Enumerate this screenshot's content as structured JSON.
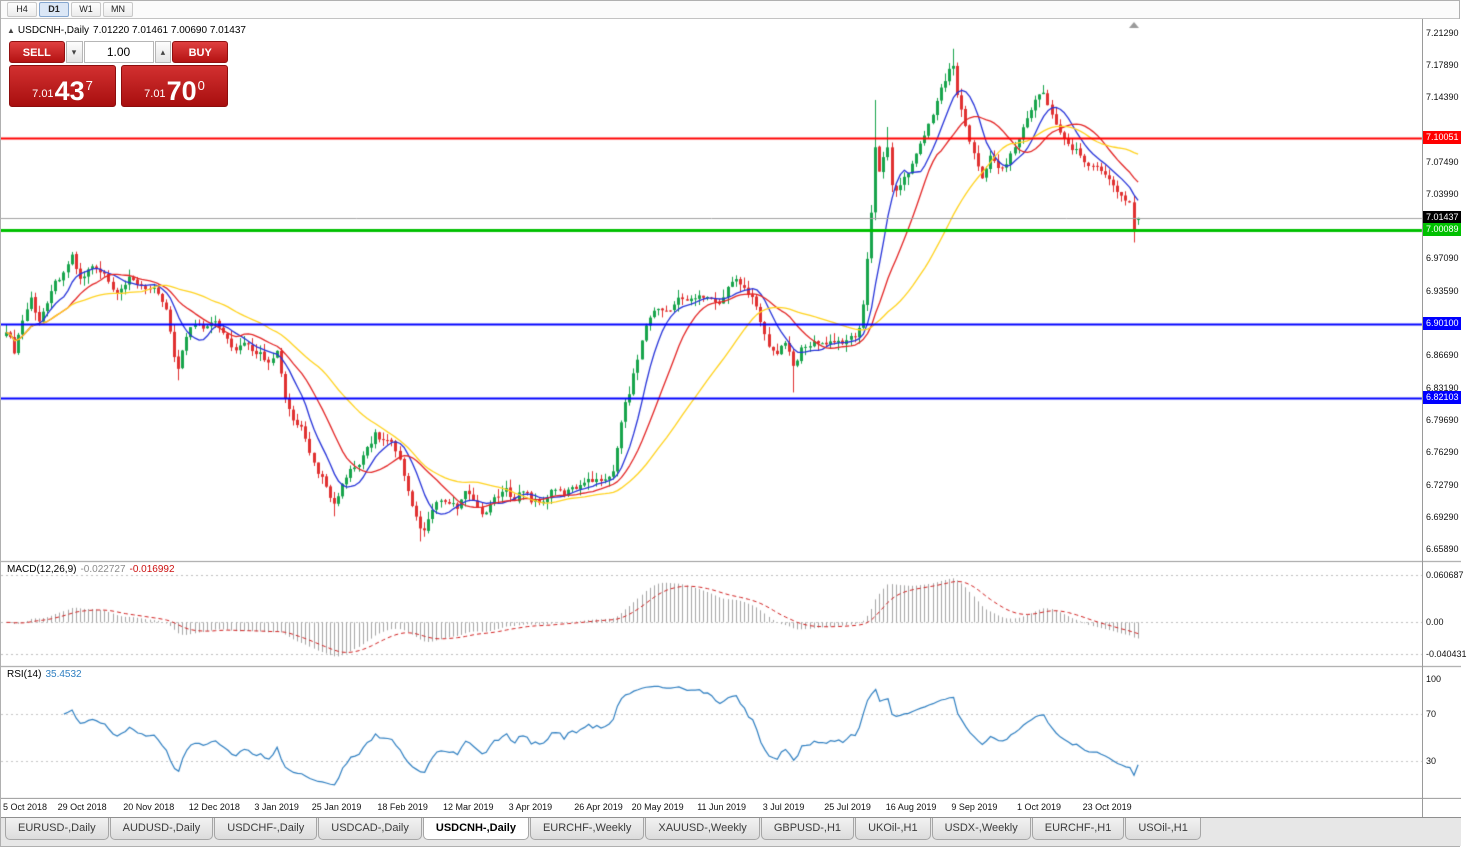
{
  "icons": {
    "collapse_arrow": "▲",
    "spinner_up": "▴",
    "spinner_down": "▾"
  },
  "toolbar": {
    "timeframes": [
      "H4",
      "D1",
      "W1",
      "MN"
    ],
    "active": "D1"
  },
  "chart_header": {
    "symbol": "USDCNH-,Daily",
    "ohlc": "7.01220 7.01461 7.00690 7.01437"
  },
  "trade_widget": {
    "sell_label": "SELL",
    "buy_label": "BUY",
    "volume": "1.00",
    "sell_small": "7.01",
    "sell_big": "43",
    "sell_sup": "7",
    "buy_small": "7.01",
    "buy_big": "70",
    "buy_sup": "0"
  },
  "price_scale": {
    "plain": [
      "7.21290",
      "7.17890",
      "7.14390",
      "7.07490",
      "7.03990",
      "6.97090",
      "6.93590",
      "6.86690",
      "6.83190",
      "6.79690",
      "6.76290",
      "6.72790",
      "6.69290",
      "6.65890"
    ],
    "boxes": [
      {
        "text": "7.10051",
        "bg": "#ff0000"
      },
      {
        "text": "7.01437",
        "bg": "#000000"
      },
      {
        "text": "7.00089",
        "bg": "#00c000"
      },
      {
        "text": "6.90100",
        "bg": "#0000ff"
      },
      {
        "text": "6.82103",
        "bg": "#0000ff"
      }
    ]
  },
  "macd": {
    "name": "MACD(12,26,9)",
    "v1": "-0.022727",
    "v2": "-0.016992",
    "scale": [
      {
        "text": "0.060687",
        "value": 0.060687
      },
      {
        "text": "0.00",
        "value": 0
      },
      {
        "text": "-0.040431",
        "value": -0.040431
      }
    ]
  },
  "rsi": {
    "name": "RSI(14)",
    "value": "35.4532",
    "scale": [
      {
        "text": "100",
        "value": 100
      },
      {
        "text": "70",
        "value": 70
      },
      {
        "text": "30",
        "value": 30
      }
    ]
  },
  "tabs": {
    "labels": [
      "EURUSD-,Daily",
      "AUDUSD-,Daily",
      "USDCHF-,Daily",
      "USDCAD-,Daily",
      "USDCNH-,Daily",
      "EURCHF-,Weekly",
      "XAUUSD-,Weekly",
      "GBPUSD-,H1",
      "UKOil-,H1",
      "USDX-,Weekly",
      "EURCHF-,H1",
      "USOil-,H1"
    ],
    "active": "USDCNH-,Daily"
  },
  "chart_data": {
    "type": "candlestick",
    "symbol": "USDCNH-",
    "timeframe": "Daily",
    "last_bar": {
      "open": 7.0122,
      "high": 7.01461,
      "low": 7.0069,
      "close": 7.01437
    },
    "current_price": 7.01437,
    "price_axis": {
      "min": 6.6589,
      "max": 7.2129,
      "tick_step": 0.035
    },
    "candle_count": 277,
    "close_anchors": [
      [
        0,
        6.895
      ],
      [
        2,
        6.872
      ],
      [
        4,
        6.905
      ],
      [
        6,
        6.928
      ],
      [
        8,
        6.902
      ],
      [
        11,
        6.938
      ],
      [
        14,
        6.958
      ],
      [
        16,
        6.972
      ],
      [
        18,
        6.948
      ],
      [
        21,
        6.962
      ],
      [
        24,
        6.952
      ],
      [
        27,
        6.93
      ],
      [
        30,
        6.948
      ],
      [
        33,
        6.942
      ],
      [
        36,
        6.936
      ],
      [
        39,
        6.918
      ],
      [
        41,
        6.868
      ],
      [
        42,
        6.852
      ],
      [
        44,
        6.888
      ],
      [
        46,
        6.902
      ],
      [
        48,
        6.898
      ],
      [
        51,
        6.906
      ],
      [
        54,
        6.884
      ],
      [
        56,
        6.872
      ],
      [
        58,
        6.879
      ],
      [
        61,
        6.871
      ],
      [
        64,
        6.862
      ],
      [
        66,
        6.871
      ],
      [
        68,
        6.82
      ],
      [
        70,
        6.796
      ],
      [
        72,
        6.788
      ],
      [
        74,
        6.76
      ],
      [
        76,
        6.742
      ],
      [
        78,
        6.728
      ],
      [
        80,
        6.706
      ],
      [
        82,
        6.726
      ],
      [
        84,
        6.742
      ],
      [
        86,
        6.749
      ],
      [
        88,
        6.768
      ],
      [
        90,
        6.782
      ],
      [
        92,
        6.776
      ],
      [
        94,
        6.772
      ],
      [
        96,
        6.752
      ],
      [
        98,
        6.718
      ],
      [
        100,
        6.692
      ],
      [
        102,
        6.676
      ],
      [
        104,
        6.701
      ],
      [
        106,
        6.712
      ],
      [
        108,
        6.706
      ],
      [
        110,
        6.704
      ],
      [
        112,
        6.718
      ],
      [
        114,
        6.711
      ],
      [
        116,
        6.696
      ],
      [
        118,
        6.706
      ],
      [
        120,
        6.716
      ],
      [
        122,
        6.721
      ],
      [
        124,
        6.714
      ],
      [
        126,
        6.722
      ],
      [
        128,
        6.712
      ],
      [
        130,
        6.708
      ],
      [
        132,
        6.716
      ],
      [
        134,
        6.722
      ],
      [
        136,
        6.718
      ],
      [
        138,
        6.723
      ],
      [
        140,
        6.728
      ],
      [
        142,
        6.736
      ],
      [
        144,
        6.731
      ],
      [
        146,
        6.736
      ],
      [
        148,
        6.743
      ],
      [
        150,
        6.792
      ],
      [
        151,
        6.82
      ],
      [
        152,
        6.828
      ],
      [
        153,
        6.846
      ],
      [
        154,
        6.862
      ],
      [
        155,
        6.88
      ],
      [
        156,
        6.902
      ],
      [
        158,
        6.913
      ],
      [
        160,
        6.918
      ],
      [
        162,
        6.912
      ],
      [
        164,
        6.931
      ],
      [
        166,
        6.924
      ],
      [
        168,
        6.928
      ],
      [
        170,
        6.932
      ],
      [
        172,
        6.93
      ],
      [
        174,
        6.922
      ],
      [
        176,
        6.938
      ],
      [
        178,
        6.952
      ],
      [
        180,
        6.936
      ],
      [
        182,
        6.928
      ],
      [
        184,
        6.906
      ],
      [
        186,
        6.879
      ],
      [
        188,
        6.868
      ],
      [
        190,
        6.881
      ],
      [
        192,
        6.856
      ],
      [
        194,
        6.872
      ],
      [
        196,
        6.878
      ],
      [
        198,
        6.882
      ],
      [
        200,
        6.878
      ],
      [
        202,
        6.881
      ],
      [
        204,
        6.882
      ],
      [
        206,
        6.886
      ],
      [
        208,
        6.893
      ],
      [
        209,
        6.922
      ],
      [
        210,
        6.972
      ],
      [
        211,
        7.022
      ],
      [
        212,
        7.088
      ],
      [
        213,
        7.062
      ],
      [
        214,
        7.079
      ],
      [
        215,
        7.092
      ],
      [
        216,
        7.053
      ],
      [
        217,
        7.041
      ],
      [
        218,
        7.052
      ],
      [
        220,
        7.063
      ],
      [
        222,
        7.082
      ],
      [
        224,
        7.103
      ],
      [
        226,
        7.128
      ],
      [
        228,
        7.152
      ],
      [
        230,
        7.172
      ],
      [
        231,
        7.178
      ],
      [
        232,
        7.148
      ],
      [
        234,
        7.112
      ],
      [
        236,
        7.082
      ],
      [
        238,
        7.056
      ],
      [
        240,
        7.08
      ],
      [
        242,
        7.068
      ],
      [
        244,
        7.073
      ],
      [
        246,
        7.092
      ],
      [
        248,
        7.112
      ],
      [
        250,
        7.132
      ],
      [
        252,
        7.148
      ],
      [
        253,
        7.152
      ],
      [
        254,
        7.132
      ],
      [
        256,
        7.112
      ],
      [
        258,
        7.102
      ],
      [
        260,
        7.088
      ],
      [
        262,
        7.082
      ],
      [
        264,
        7.073
      ],
      [
        266,
        7.066
      ],
      [
        268,
        7.06
      ],
      [
        270,
        7.05
      ],
      [
        272,
        7.038
      ],
      [
        274,
        7.031
      ],
      [
        275,
        7.002
      ],
      [
        276,
        7.01437
      ]
    ],
    "wick_overrides": [
      {
        "i": 42,
        "low": 6.84
      },
      {
        "i": 80,
        "low": 6.694
      },
      {
        "i": 101,
        "low": 6.667
      },
      {
        "i": 192,
        "low": 6.827
      },
      {
        "i": 212,
        "high": 7.141
      },
      {
        "i": 215,
        "high": 7.112
      },
      {
        "i": 231,
        "high": 7.196
      },
      {
        "i": 275,
        "low": 6.988
      }
    ],
    "horizontal_levels": [
      {
        "price": 7.10051,
        "color": "#ff0000",
        "width": 2
      },
      {
        "price": 7.00089,
        "color": "#00c000",
        "width": 3
      },
      {
        "price": 6.901,
        "color": "#0000ff",
        "width": 2
      },
      {
        "price": 6.82103,
        "color": "#0000ff",
        "width": 2
      }
    ],
    "moving_averages": [
      {
        "period": 8,
        "color": "#2633d9"
      },
      {
        "period": 16,
        "color": "#e32525"
      },
      {
        "period": 34,
        "color": "#ffd21e"
      }
    ],
    "indicators": [
      {
        "name": "MACD",
        "params": [
          12,
          26,
          9
        ],
        "values": [
          -0.022727,
          -0.016992
        ],
        "scale": [
          0.060687,
          0,
          -0.040431
        ]
      },
      {
        "name": "RSI",
        "params": [
          14
        ],
        "value": 35.4532,
        "scale": [
          100,
          70,
          30
        ]
      }
    ],
    "x_tick_labels": [
      {
        "t": "5 Oct 2018",
        "i": 0
      },
      {
        "t": "29 Oct 2018",
        "i": 16
      },
      {
        "t": "20 Nov 2018",
        "i": 32
      },
      {
        "t": "12 Dec 2018",
        "i": 48
      },
      {
        "t": "3 Jan 2019",
        "i": 64
      },
      {
        "t": "25 Jan 2019",
        "i": 78
      },
      {
        "t": "18 Feb 2019",
        "i": 94
      },
      {
        "t": "12 Mar 2019",
        "i": 110
      },
      {
        "t": "3 Apr 2019",
        "i": 126
      },
      {
        "t": "26 Apr 2019",
        "i": 142
      },
      {
        "t": "20 May 2019",
        "i": 156
      },
      {
        "t": "11 Jun 2019",
        "i": 172
      },
      {
        "t": "3 Jul 2019",
        "i": 188
      },
      {
        "t": "25 Jul 2019",
        "i": 203
      },
      {
        "t": "16 Aug 2019",
        "i": 218
      },
      {
        "t": "9 Sep 2019",
        "i": 234
      },
      {
        "t": "1 Oct 2019",
        "i": 250
      },
      {
        "t": "23 Oct 2019",
        "i": 266
      }
    ],
    "colors": {
      "up": "#18a44c",
      "down": "#e03131",
      "macd_hist": "#a6a6a6",
      "macd_signal": "#d02020",
      "rsi_line": "#2f7fc1",
      "current_line": "#a0a0a0"
    }
  }
}
